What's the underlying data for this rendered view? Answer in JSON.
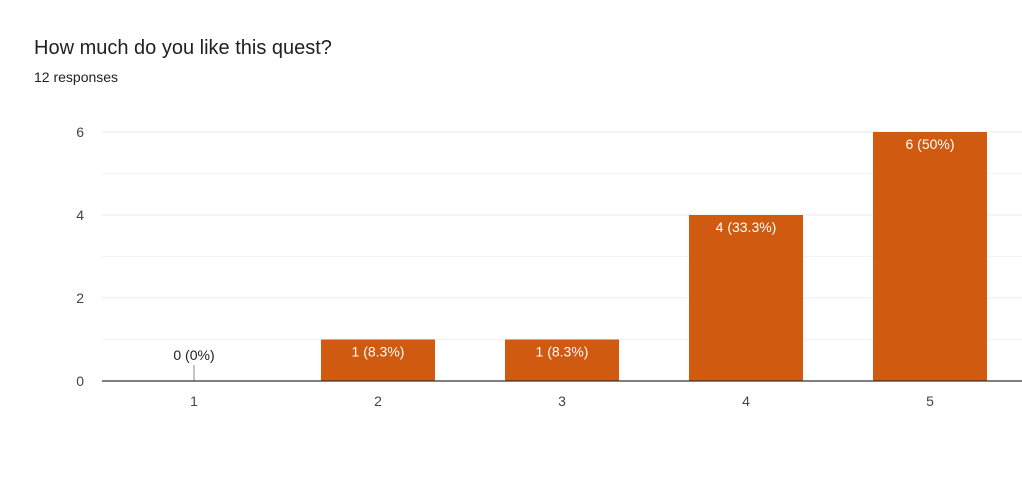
{
  "header": {
    "title": "How much do you like this quest?",
    "subtitle": "12 responses"
  },
  "colors": {
    "bar": "#d05a10",
    "grid": "#ebebeb",
    "axis": "#333333"
  },
  "chart_data": {
    "type": "bar",
    "title": "",
    "xlabel": "",
    "ylabel": "",
    "categories": [
      "1",
      "2",
      "3",
      "4",
      "5"
    ],
    "values": [
      0,
      1,
      1,
      4,
      6
    ],
    "data_labels": [
      "0 (0%)",
      "1 (8.3%)",
      "1 (8.3%)",
      "4 (33.3%)",
      "6 (50%)"
    ],
    "ylim": [
      0,
      6
    ],
    "yticks": [
      "0",
      "2",
      "4",
      "6"
    ],
    "grid": true,
    "legend": "none"
  }
}
